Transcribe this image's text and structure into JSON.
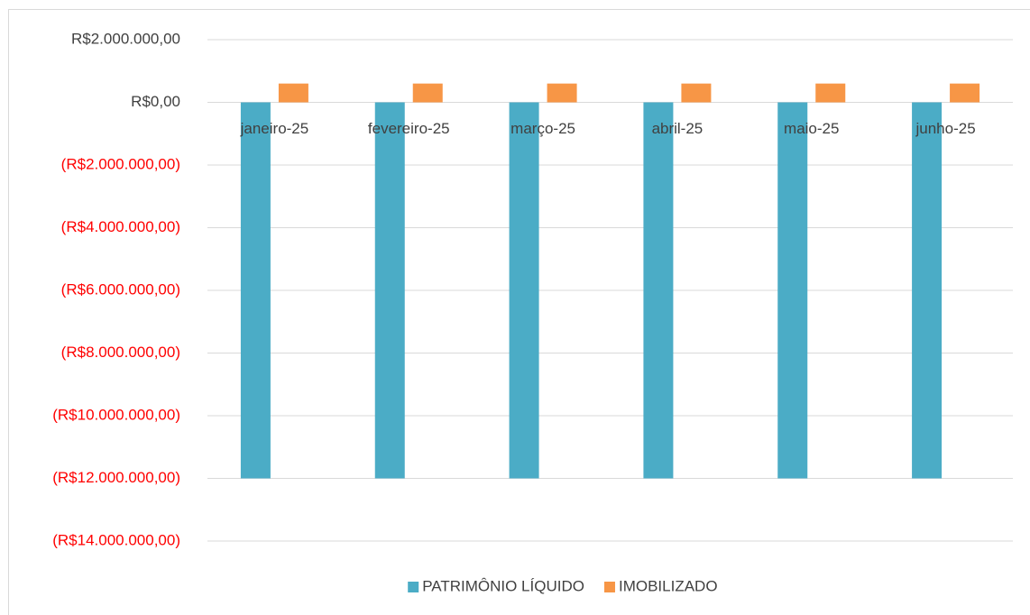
{
  "chart_data": {
    "type": "bar",
    "categories": [
      "janeiro-25",
      "fevereiro-25",
      "março-25",
      "abril-25",
      "maio-25",
      "junho-25"
    ],
    "series": [
      {
        "name": "PATRIMÔNIO LÍQUIDO",
        "color": "#4bacc6",
        "values": [
          -12000000,
          -12000000,
          -12000000,
          -12000000,
          -12000000,
          -12000000
        ]
      },
      {
        "name": "IMOBILIZADO",
        "color": "#f79646",
        "values": [
          600000,
          600000,
          600000,
          600000,
          600000,
          600000
        ]
      }
    ],
    "ylim": [
      -14000000,
      2000000
    ],
    "yticks": [
      {
        "value": 2000000,
        "label": "R$2.000.000,00"
      },
      {
        "value": 0,
        "label": "R$0,00"
      },
      {
        "value": -2000000,
        "label": "(R$2.000.000,00)"
      },
      {
        "value": -4000000,
        "label": "(R$4.000.000,00)"
      },
      {
        "value": -6000000,
        "label": "(R$6.000.000,00)"
      },
      {
        "value": -8000000,
        "label": "(R$8.000.000,00)"
      },
      {
        "value": -10000000,
        "label": "(R$10.000.000,00)"
      },
      {
        "value": -12000000,
        "label": "(R$12.000.000,00)"
      },
      {
        "value": -14000000,
        "label": "(R$14.000.000,00)"
      }
    ],
    "negative_tick_color": "#ff0000",
    "grid": true,
    "legend": "bottom"
  }
}
